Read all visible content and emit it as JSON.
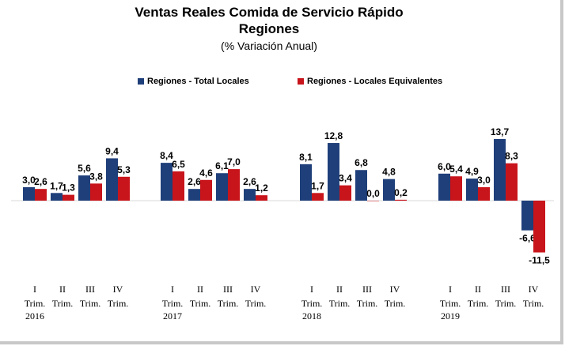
{
  "chart_data": {
    "type": "bar",
    "title": "Ventas Reales Comida de Servicio Rápido",
    "subtitle": "Regiones",
    "unit_label": "(% Variación Anual)",
    "legend_position": "top",
    "grid": false,
    "ylim": [
      -12,
      15
    ],
    "groups": [
      {
        "year": "2016",
        "quarters": [
          {
            "numeral": "I",
            "trim": "Trim.",
            "total": 3.0,
            "total_label": "3,0",
            "equiv": 2.6,
            "equiv_label": "2,6"
          },
          {
            "numeral": "II",
            "trim": "Trim.",
            "total": 1.7,
            "total_label": "1,7",
            "equiv": 1.3,
            "equiv_label": "1,3"
          },
          {
            "numeral": "III",
            "trim": "Trim.",
            "total": 5.6,
            "total_label": "5,6",
            "equiv": 3.8,
            "equiv_label": "3,8"
          },
          {
            "numeral": "IV",
            "trim": "Trim.",
            "total": 9.4,
            "total_label": "9,4",
            "equiv": 5.3,
            "equiv_label": "5,3"
          }
        ]
      },
      {
        "year": "2017",
        "quarters": [
          {
            "numeral": "I",
            "trim": "Trim.",
            "total": 8.4,
            "total_label": "8,4",
            "equiv": 6.5,
            "equiv_label": "6,5"
          },
          {
            "numeral": "II",
            "trim": "Trim.",
            "total": 2.6,
            "total_label": "2,6",
            "equiv": 4.6,
            "equiv_label": "4,6"
          },
          {
            "numeral": "III",
            "trim": "Trim.",
            "total": 6.1,
            "total_label": "6,1",
            "equiv": 7.0,
            "equiv_label": "7,0"
          },
          {
            "numeral": "IV",
            "trim": "Trim.",
            "total": 2.6,
            "total_label": "2,6",
            "equiv": 1.2,
            "equiv_label": "1,2"
          }
        ]
      },
      {
        "year": "2018",
        "quarters": [
          {
            "numeral": "I",
            "trim": "Trim.",
            "total": 8.1,
            "total_label": "8,1",
            "equiv": 1.7,
            "equiv_label": "1,7"
          },
          {
            "numeral": "II",
            "trim": "Trim.",
            "total": 12.8,
            "total_label": "12,8",
            "equiv": 3.4,
            "equiv_label": "3,4"
          },
          {
            "numeral": "III",
            "trim": "Trim.",
            "total": 6.8,
            "total_label": "6,8",
            "equiv": 0.0,
            "equiv_label": "0,0"
          },
          {
            "numeral": "IV",
            "trim": "Trim.",
            "total": 4.8,
            "total_label": "4,8",
            "equiv": 0.2,
            "equiv_label": "0,2"
          }
        ]
      },
      {
        "year": "2019",
        "quarters": [
          {
            "numeral": "I",
            "trim": "Trim.",
            "total": 6.0,
            "total_label": "6,0",
            "equiv": 5.4,
            "equiv_label": "5,4"
          },
          {
            "numeral": "II",
            "trim": "Trim.",
            "total": 4.9,
            "total_label": "4,9",
            "equiv": 3.0,
            "equiv_label": "3,0"
          },
          {
            "numeral": "III",
            "trim": "Trim.",
            "total": 13.7,
            "total_label": "13,7",
            "equiv": 8.3,
            "equiv_label": "8,3"
          },
          {
            "numeral": "IV",
            "trim": "Trim.",
            "total": -6.6,
            "total_label": "-6,6",
            "equiv": -11.5,
            "equiv_label": "-11,5"
          }
        ]
      }
    ],
    "series": [
      {
        "name": "Regiones - Total Locales",
        "key": "total",
        "color": "#1f3f7a"
      },
      {
        "name": "Regiones - Locales Equivalentes",
        "key": "equiv",
        "color": "#c8141b"
      }
    ]
  }
}
